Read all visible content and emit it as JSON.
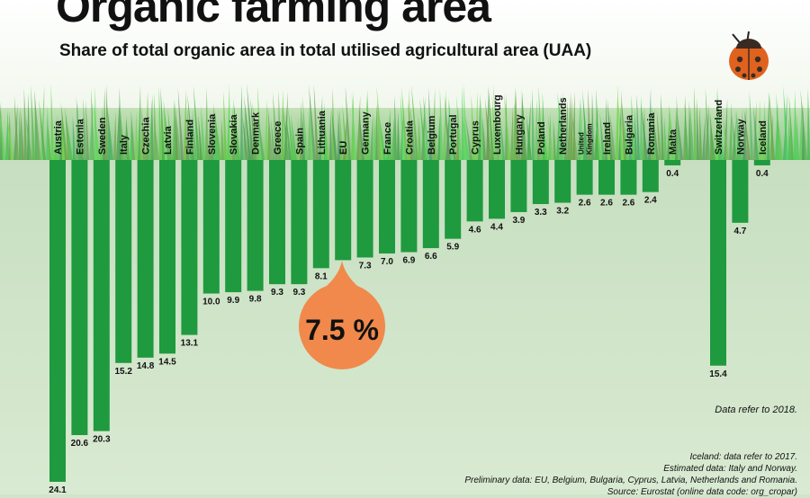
{
  "title": "Organic farming area",
  "subtitle": "Share of total organic area in total utilised agricultural area (UAA)",
  "eu_callout": "7.5 %",
  "notes": {
    "data_year": "Data refer to 2018.",
    "iceland": "Iceland: data refer to 2017.",
    "estimated": "Estimated data:  Italy and Norway.",
    "preliminary": "Preliminary data: EU, Belgium, Bulgaria, Cyprus, Latvia, Netherlands and Romania.",
    "source": "Source: Eurostat (online data code: org_cropar)"
  },
  "colors": {
    "bar": "#1f9a3e",
    "callout": "#f0894b",
    "grass": "#4fb34a",
    "background": "#cfe4c9",
    "ladybug": "#e0621f"
  },
  "icons": [
    "ladybug-icon"
  ],
  "chart_data": {
    "type": "bar",
    "title": "Organic farming area",
    "subtitle": "Share of total organic area in total utilised agricultural area (UAA)",
    "categories": [
      "Austria",
      "Estonia",
      "Sweden",
      "Italy",
      "Czechia",
      "Latvia",
      "Finland",
      "Slovenia",
      "Slovakia",
      "Denmark",
      "Greece",
      "Spain",
      "Lithuania",
      "EU",
      "Germany",
      "France",
      "Croatia",
      "Belgium",
      "Portugal",
      "Cyprus",
      "Luxembourg",
      "Hungary",
      "Poland",
      "Netherlands",
      "United Kingdom",
      "Ireland",
      "Bulgaria",
      "Romania",
      "Malta",
      "Switzerland",
      "Norway",
      "Iceland"
    ],
    "values": [
      24.1,
      20.6,
      20.3,
      15.2,
      14.8,
      14.5,
      13.1,
      10.0,
      9.9,
      9.8,
      9.3,
      9.3,
      8.1,
      7.5,
      7.3,
      7.0,
      6.9,
      6.6,
      5.9,
      4.6,
      4.4,
      3.9,
      3.3,
      3.2,
      2.6,
      2.6,
      2.6,
      2.4,
      0.4,
      15.4,
      4.7,
      0.4
    ],
    "value_labels": [
      "24.1",
      "20.6",
      "20.3",
      "15.2",
      "14.8",
      "14.5",
      "13.1",
      "10.0",
      "9.9",
      "9.8",
      "9.3",
      "9.3",
      "8.1",
      "",
      "7.3",
      "7.0",
      "6.9",
      "6.6",
      "5.9",
      "4.6",
      "4.4",
      "3.9",
      "3.3",
      "3.2",
      "2.6",
      "2.6",
      "2.6",
      "2.4",
      "0.4",
      "15.4",
      "4.7",
      "0.4"
    ],
    "xlabel": "",
    "ylabel": "",
    "unit": "%",
    "orientation": "vertical-downward",
    "legend": "none",
    "grid": false
  }
}
